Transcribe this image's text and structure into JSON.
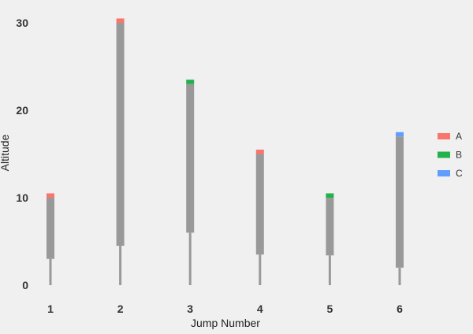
{
  "chart_data": {
    "type": "bar",
    "xlabel": "Jump Number",
    "ylabel": "Altitude",
    "categories": [
      "1",
      "2",
      "3",
      "4",
      "5",
      "6"
    ],
    "ylim": [
      0,
      32
    ],
    "yticks": [
      0,
      10,
      20,
      30
    ],
    "grid": false,
    "legend_position": "right",
    "stem_color": "#999999",
    "body_color": "#999999",
    "series": [
      {
        "name": "A",
        "color": "#f8766d"
      },
      {
        "name": "B",
        "color": "#22b24c"
      },
      {
        "name": "C",
        "color": "#619cff"
      }
    ],
    "jumps": [
      {
        "jump": "1",
        "stem_low": 0,
        "body_low": 3,
        "body_high": 10,
        "cap_high": 10.5,
        "group": "A"
      },
      {
        "jump": "2",
        "stem_low": 0,
        "body_low": 4.5,
        "body_high": 30,
        "cap_high": 30.5,
        "group": "A"
      },
      {
        "jump": "3",
        "stem_low": 0,
        "body_low": 6,
        "body_high": 23,
        "cap_high": 23.5,
        "group": "B"
      },
      {
        "jump": "4",
        "stem_low": 0,
        "body_low": 3.5,
        "body_high": 15,
        "cap_high": 15.5,
        "group": "A"
      },
      {
        "jump": "5",
        "stem_low": 0,
        "body_low": 3.4,
        "body_high": 10,
        "cap_high": 10.5,
        "group": "B"
      },
      {
        "jump": "6",
        "stem_low": 0,
        "body_low": 2,
        "body_high": 17,
        "cap_high": 17.5,
        "group": "C"
      }
    ]
  }
}
